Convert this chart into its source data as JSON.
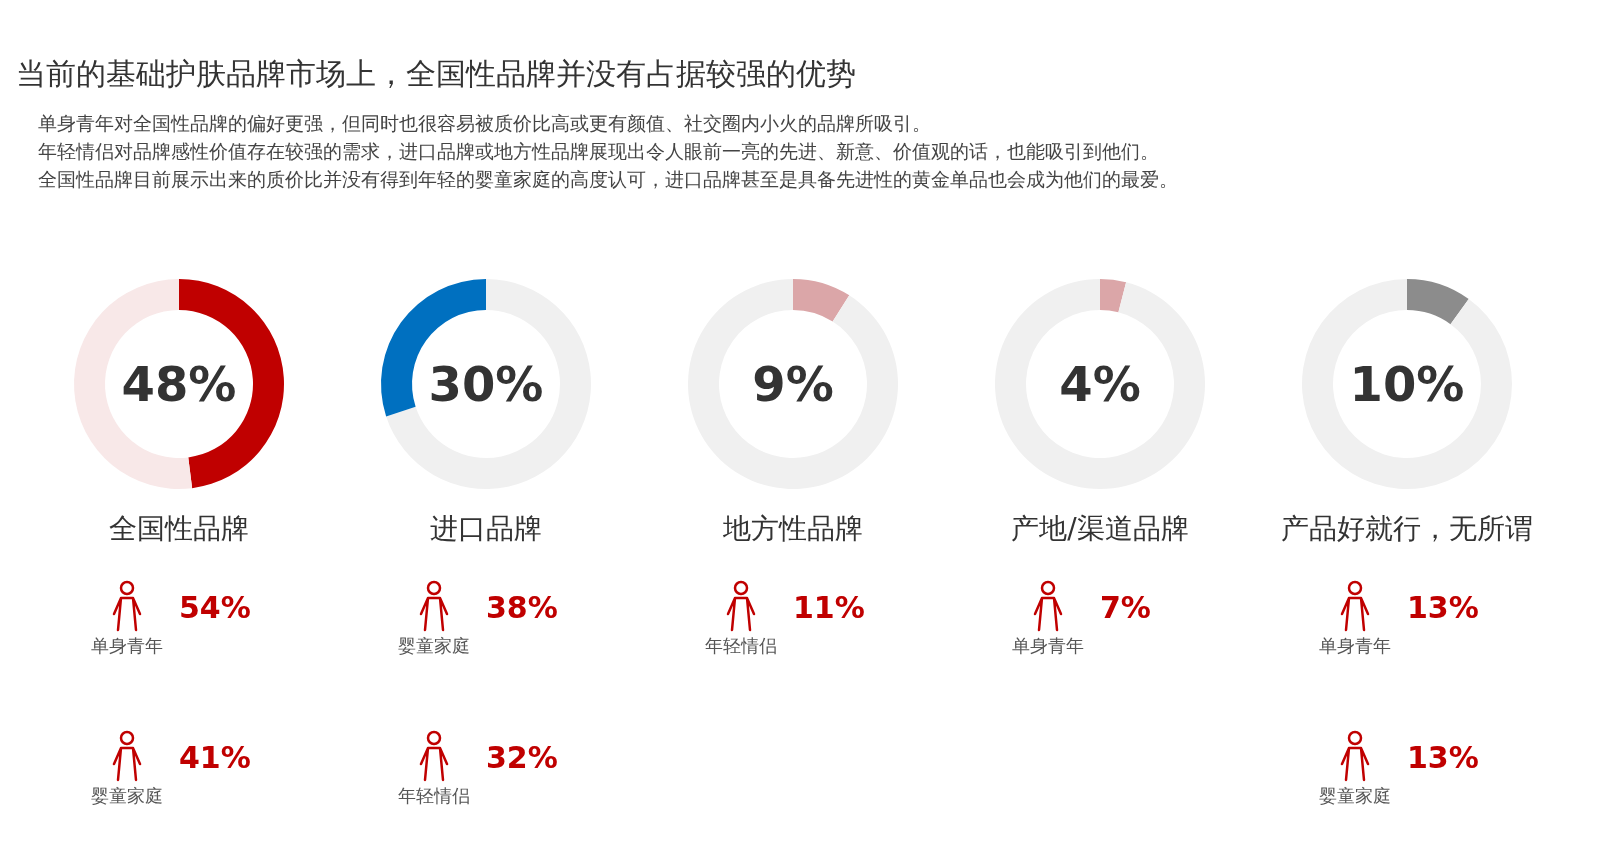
{
  "chart_data": [
    {
      "type": "other",
      "title": "当前的基础护肤品牌市场上，全国性品牌并没有占据较强的优势",
      "annotations": [
        "单身青年对全国性品牌的偏好更强，但同时也很容易被质价比高或更有颜值、社交圈内小火的品牌所吸引。",
        "年轻情侣对品牌感性价值存在较强的需求，进口品牌或地方性品牌展现出令人眼前一亮的先进、新意、价值观的话，也能吸引到他们。",
        "全国性品牌目前展示出来的质价比并没有得到年轻的婴童家庭的高度认可，进口品牌甚至是具备先进性的黄金单品也会成为他们的最爱。"
      ]
    },
    {
      "type": "donut",
      "title": "全国性品牌",
      "categories": [
        null,
        null
      ],
      "values": [
        48,
        52
      ],
      "colors": [
        "#c00000",
        "#f8e8e8"
      ],
      "value_labels": [
        "48%",
        null
      ],
      "annotations": [
        "单身青年",
        "54%",
        "婴童家庭",
        "41%"
      ]
    },
    {
      "type": "donut",
      "title": "进口品牌",
      "categories": [
        null,
        null
      ],
      "values": [
        70,
        30
      ],
      "colors": [
        "#f0f0f0",
        "#0070c0"
      ],
      "value_labels": [
        null,
        "30%"
      ],
      "annotations": [
        "婴童家庭",
        "38%",
        "年轻情侣",
        "32%"
      ]
    },
    {
      "type": "donut",
      "title": "地方性品牌",
      "categories": [
        null,
        null
      ],
      "values": [
        9,
        91
      ],
      "colors": [
        "#dba6a8",
        "#f0f0f0"
      ],
      "value_labels": [
        "9%",
        null
      ],
      "annotations": [
        "年轻情侣",
        "11%"
      ]
    },
    {
      "type": "donut",
      "title": "产地/渠道品牌",
      "categories": [
        null,
        null
      ],
      "values": [
        4,
        96
      ],
      "colors": [
        "#dba6a8",
        "#f0f0f0"
      ],
      "value_labels": [
        "4%",
        null
      ],
      "annotations": [
        "单身青年",
        "7%"
      ]
    },
    {
      "type": "donut",
      "title": "产品好就行，无所谓",
      "categories": [
        null,
        null
      ],
      "values": [
        10,
        90
      ],
      "colors": [
        "#8c8c8c",
        "#f0f0f0"
      ],
      "value_labels": [
        "10%",
        null
      ],
      "annotations": [
        "单身青年",
        "13%",
        "婴童家庭",
        "13%"
      ]
    }
  ]
}
